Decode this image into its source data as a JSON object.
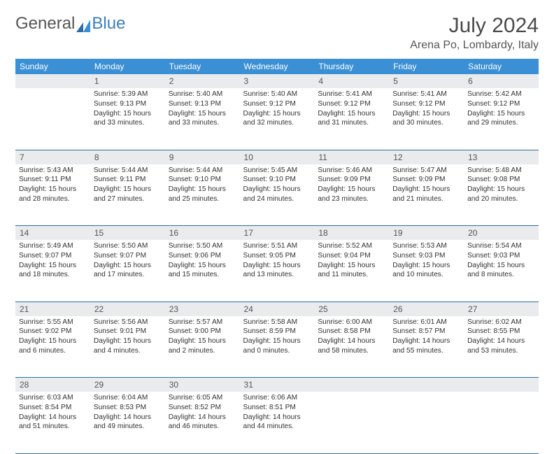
{
  "logo": {
    "text1": "General",
    "text2": "Blue"
  },
  "title": "July 2024",
  "location": "Arena Po, Lombardy, Italy",
  "day_names": [
    "Sunday",
    "Monday",
    "Tuesday",
    "Wednesday",
    "Thursday",
    "Friday",
    "Saturday"
  ],
  "header_bg": "#3b8fd4",
  "header_text": "#ffffff",
  "grid_line": "#2f6fa0",
  "daynum_bg": "#e9ebec",
  "weeks": [
    [
      {
        "n": "",
        "sunrise": "",
        "sunset": "",
        "daylight": ""
      },
      {
        "n": "1",
        "sunrise": "Sunrise: 5:39 AM",
        "sunset": "Sunset: 9:13 PM",
        "daylight": "Daylight: 15 hours and 33 minutes."
      },
      {
        "n": "2",
        "sunrise": "Sunrise: 5:40 AM",
        "sunset": "Sunset: 9:13 PM",
        "daylight": "Daylight: 15 hours and 33 minutes."
      },
      {
        "n": "3",
        "sunrise": "Sunrise: 5:40 AM",
        "sunset": "Sunset: 9:12 PM",
        "daylight": "Daylight: 15 hours and 32 minutes."
      },
      {
        "n": "4",
        "sunrise": "Sunrise: 5:41 AM",
        "sunset": "Sunset: 9:12 PM",
        "daylight": "Daylight: 15 hours and 31 minutes."
      },
      {
        "n": "5",
        "sunrise": "Sunrise: 5:41 AM",
        "sunset": "Sunset: 9:12 PM",
        "daylight": "Daylight: 15 hours and 30 minutes."
      },
      {
        "n": "6",
        "sunrise": "Sunrise: 5:42 AM",
        "sunset": "Sunset: 9:12 PM",
        "daylight": "Daylight: 15 hours and 29 minutes."
      }
    ],
    [
      {
        "n": "7",
        "sunrise": "Sunrise: 5:43 AM",
        "sunset": "Sunset: 9:11 PM",
        "daylight": "Daylight: 15 hours and 28 minutes."
      },
      {
        "n": "8",
        "sunrise": "Sunrise: 5:44 AM",
        "sunset": "Sunset: 9:11 PM",
        "daylight": "Daylight: 15 hours and 27 minutes."
      },
      {
        "n": "9",
        "sunrise": "Sunrise: 5:44 AM",
        "sunset": "Sunset: 9:10 PM",
        "daylight": "Daylight: 15 hours and 25 minutes."
      },
      {
        "n": "10",
        "sunrise": "Sunrise: 5:45 AM",
        "sunset": "Sunset: 9:10 PM",
        "daylight": "Daylight: 15 hours and 24 minutes."
      },
      {
        "n": "11",
        "sunrise": "Sunrise: 5:46 AM",
        "sunset": "Sunset: 9:09 PM",
        "daylight": "Daylight: 15 hours and 23 minutes."
      },
      {
        "n": "12",
        "sunrise": "Sunrise: 5:47 AM",
        "sunset": "Sunset: 9:09 PM",
        "daylight": "Daylight: 15 hours and 21 minutes."
      },
      {
        "n": "13",
        "sunrise": "Sunrise: 5:48 AM",
        "sunset": "Sunset: 9:08 PM",
        "daylight": "Daylight: 15 hours and 20 minutes."
      }
    ],
    [
      {
        "n": "14",
        "sunrise": "Sunrise: 5:49 AM",
        "sunset": "Sunset: 9:07 PM",
        "daylight": "Daylight: 15 hours and 18 minutes."
      },
      {
        "n": "15",
        "sunrise": "Sunrise: 5:50 AM",
        "sunset": "Sunset: 9:07 PM",
        "daylight": "Daylight: 15 hours and 17 minutes."
      },
      {
        "n": "16",
        "sunrise": "Sunrise: 5:50 AM",
        "sunset": "Sunset: 9:06 PM",
        "daylight": "Daylight: 15 hours and 15 minutes."
      },
      {
        "n": "17",
        "sunrise": "Sunrise: 5:51 AM",
        "sunset": "Sunset: 9:05 PM",
        "daylight": "Daylight: 15 hours and 13 minutes."
      },
      {
        "n": "18",
        "sunrise": "Sunrise: 5:52 AM",
        "sunset": "Sunset: 9:04 PM",
        "daylight": "Daylight: 15 hours and 11 minutes."
      },
      {
        "n": "19",
        "sunrise": "Sunrise: 5:53 AM",
        "sunset": "Sunset: 9:03 PM",
        "daylight": "Daylight: 15 hours and 10 minutes."
      },
      {
        "n": "20",
        "sunrise": "Sunrise: 5:54 AM",
        "sunset": "Sunset: 9:03 PM",
        "daylight": "Daylight: 15 hours and 8 minutes."
      }
    ],
    [
      {
        "n": "21",
        "sunrise": "Sunrise: 5:55 AM",
        "sunset": "Sunset: 9:02 PM",
        "daylight": "Daylight: 15 hours and 6 minutes."
      },
      {
        "n": "22",
        "sunrise": "Sunrise: 5:56 AM",
        "sunset": "Sunset: 9:01 PM",
        "daylight": "Daylight: 15 hours and 4 minutes."
      },
      {
        "n": "23",
        "sunrise": "Sunrise: 5:57 AM",
        "sunset": "Sunset: 9:00 PM",
        "daylight": "Daylight: 15 hours and 2 minutes."
      },
      {
        "n": "24",
        "sunrise": "Sunrise: 5:58 AM",
        "sunset": "Sunset: 8:59 PM",
        "daylight": "Daylight: 15 hours and 0 minutes."
      },
      {
        "n": "25",
        "sunrise": "Sunrise: 6:00 AM",
        "sunset": "Sunset: 8:58 PM",
        "daylight": "Daylight: 14 hours and 58 minutes."
      },
      {
        "n": "26",
        "sunrise": "Sunrise: 6:01 AM",
        "sunset": "Sunset: 8:57 PM",
        "daylight": "Daylight: 14 hours and 55 minutes."
      },
      {
        "n": "27",
        "sunrise": "Sunrise: 6:02 AM",
        "sunset": "Sunset: 8:55 PM",
        "daylight": "Daylight: 14 hours and 53 minutes."
      }
    ],
    [
      {
        "n": "28",
        "sunrise": "Sunrise: 6:03 AM",
        "sunset": "Sunset: 8:54 PM",
        "daylight": "Daylight: 14 hours and 51 minutes."
      },
      {
        "n": "29",
        "sunrise": "Sunrise: 6:04 AM",
        "sunset": "Sunset: 8:53 PM",
        "daylight": "Daylight: 14 hours and 49 minutes."
      },
      {
        "n": "30",
        "sunrise": "Sunrise: 6:05 AM",
        "sunset": "Sunset: 8:52 PM",
        "daylight": "Daylight: 14 hours and 46 minutes."
      },
      {
        "n": "31",
        "sunrise": "Sunrise: 6:06 AM",
        "sunset": "Sunset: 8:51 PM",
        "daylight": "Daylight: 14 hours and 44 minutes."
      },
      {
        "n": "",
        "sunrise": "",
        "sunset": "",
        "daylight": ""
      },
      {
        "n": "",
        "sunrise": "",
        "sunset": "",
        "daylight": ""
      },
      {
        "n": "",
        "sunrise": "",
        "sunset": "",
        "daylight": ""
      }
    ]
  ]
}
